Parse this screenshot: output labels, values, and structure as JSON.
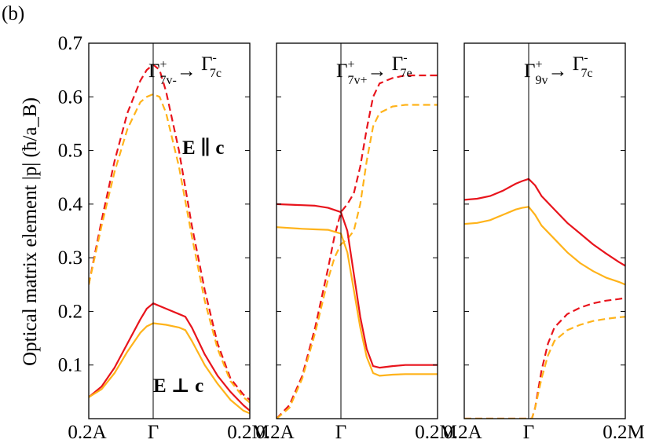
{
  "panel_label": "(b)",
  "ylabel": "Optical matrix element |p| (ħ/a_B)",
  "colors": {
    "red": "#e8141c",
    "orange": "#ffb31a"
  },
  "chart_data": [
    {
      "type": "line",
      "title": "Γ7v-+ → Γ7c-",
      "annotations": [
        "E ∥ c",
        "E ⊥ c"
      ],
      "x_ticks": [
        "0.2A",
        "Γ",
        "0.2M"
      ],
      "xlim": [
        -1,
        1.5
      ],
      "ylim": [
        0,
        0.7
      ],
      "y_ticks": [
        "0.1",
        "0.2",
        "0.3",
        "0.4",
        "0.5",
        "0.6",
        "0.7"
      ],
      "series": [
        {
          "color": "red",
          "style": "dashed",
          "x": [
            -1,
            -0.8,
            -0.6,
            -0.4,
            -0.2,
            -0.1,
            0,
            0.1,
            0.2,
            0.4,
            0.6,
            0.8,
            1,
            1.2,
            1.4,
            1.5
          ],
          "y": [
            0.25,
            0.37,
            0.48,
            0.57,
            0.63,
            0.65,
            0.66,
            0.65,
            0.61,
            0.5,
            0.36,
            0.24,
            0.14,
            0.075,
            0.045,
            0.035
          ]
        },
        {
          "color": "orange",
          "style": "dashed",
          "x": [
            -1,
            -0.8,
            -0.6,
            -0.4,
            -0.2,
            -0.1,
            0,
            0.1,
            0.2,
            0.4,
            0.6,
            0.8,
            1,
            1.2,
            1.4,
            1.5
          ],
          "y": [
            0.25,
            0.36,
            0.46,
            0.54,
            0.59,
            0.6,
            0.605,
            0.6,
            0.57,
            0.47,
            0.34,
            0.22,
            0.13,
            0.07,
            0.04,
            0.03
          ]
        },
        {
          "color": "red",
          "style": "solid",
          "x": [
            -1,
            -0.8,
            -0.6,
            -0.4,
            -0.2,
            -0.1,
            0,
            0.2,
            0.4,
            0.5,
            0.6,
            0.8,
            1,
            1.2,
            1.4,
            1.5
          ],
          "y": [
            0.04,
            0.06,
            0.095,
            0.14,
            0.185,
            0.205,
            0.215,
            0.205,
            0.195,
            0.19,
            0.17,
            0.12,
            0.08,
            0.05,
            0.025,
            0.015
          ]
        },
        {
          "color": "orange",
          "style": "solid",
          "x": [
            -1,
            -0.8,
            -0.6,
            -0.4,
            -0.2,
            -0.1,
            0,
            0.2,
            0.4,
            0.5,
            0.6,
            0.8,
            1,
            1.2,
            1.4,
            1.5
          ],
          "y": [
            0.04,
            0.055,
            0.085,
            0.125,
            0.16,
            0.172,
            0.178,
            0.175,
            0.17,
            0.165,
            0.145,
            0.1,
            0.065,
            0.035,
            0.015,
            0.01
          ]
        }
      ]
    },
    {
      "type": "line",
      "title": "Γ7v++ → Γ7c-",
      "x_ticks": [
        "0.2A",
        "Γ",
        "0.2M"
      ],
      "xlim": [
        -1,
        1.5
      ],
      "ylim": [
        0,
        0.7
      ],
      "series": [
        {
          "color": "red",
          "style": "dashed",
          "x": [
            -1,
            -0.8,
            -0.6,
            -0.4,
            -0.2,
            -0.1,
            0,
            0.1,
            0.2,
            0.3,
            0.4,
            0.5,
            0.6,
            0.8,
            1,
            1.2,
            1.4,
            1.5
          ],
          "y": [
            0.0,
            0.025,
            0.08,
            0.17,
            0.28,
            0.34,
            0.385,
            0.4,
            0.42,
            0.47,
            0.54,
            0.6,
            0.625,
            0.635,
            0.64,
            0.64,
            0.64,
            0.64
          ]
        },
        {
          "color": "orange",
          "style": "dashed",
          "x": [
            -1,
            -0.8,
            -0.6,
            -0.4,
            -0.2,
            -0.1,
            0,
            0.1,
            0.2,
            0.3,
            0.4,
            0.5,
            0.6,
            0.8,
            1,
            1.2,
            1.4,
            1.5
          ],
          "y": [
            0.0,
            0.02,
            0.075,
            0.16,
            0.26,
            0.3,
            0.325,
            0.335,
            0.35,
            0.4,
            0.48,
            0.545,
            0.57,
            0.582,
            0.585,
            0.585,
            0.585,
            0.585
          ]
        },
        {
          "color": "red",
          "style": "solid",
          "x": [
            -1,
            -0.6,
            -0.4,
            -0.2,
            0,
            0.1,
            0.2,
            0.3,
            0.4,
            0.5,
            0.6,
            0.8,
            1,
            1.2,
            1.4,
            1.5
          ],
          "y": [
            0.4,
            0.398,
            0.397,
            0.393,
            0.385,
            0.35,
            0.27,
            0.19,
            0.13,
            0.098,
            0.095,
            0.098,
            0.1,
            0.1,
            0.1,
            0.1
          ]
        },
        {
          "color": "orange",
          "style": "solid",
          "x": [
            -1,
            -0.6,
            -0.4,
            -0.2,
            0,
            0.1,
            0.2,
            0.3,
            0.4,
            0.5,
            0.6,
            0.8,
            1,
            1.2,
            1.4,
            1.5
          ],
          "y": [
            0.357,
            0.354,
            0.353,
            0.352,
            0.345,
            0.31,
            0.24,
            0.17,
            0.115,
            0.085,
            0.08,
            0.082,
            0.083,
            0.083,
            0.083,
            0.083
          ]
        }
      ]
    },
    {
      "type": "line",
      "title": "Γ9v+ → Γ7c-",
      "x_ticks": [
        "0.2A",
        "Γ",
        "0.2M"
      ],
      "xlim": [
        -1,
        1.5
      ],
      "ylim": [
        0,
        0.7
      ],
      "series": [
        {
          "color": "red",
          "style": "solid",
          "x": [
            -1,
            -0.8,
            -0.6,
            -0.4,
            -0.2,
            -0.1,
            0,
            0.1,
            0.2,
            0.4,
            0.6,
            0.8,
            1,
            1.2,
            1.4,
            1.5
          ],
          "y": [
            0.408,
            0.41,
            0.415,
            0.425,
            0.438,
            0.443,
            0.447,
            0.435,
            0.415,
            0.39,
            0.365,
            0.345,
            0.325,
            0.308,
            0.292,
            0.285
          ]
        },
        {
          "color": "orange",
          "style": "solid",
          "x": [
            -1,
            -0.8,
            -0.6,
            -0.4,
            -0.2,
            -0.1,
            0,
            0.1,
            0.2,
            0.4,
            0.6,
            0.8,
            1,
            1.2,
            1.4,
            1.5
          ],
          "y": [
            0.363,
            0.365,
            0.37,
            0.38,
            0.39,
            0.393,
            0.395,
            0.38,
            0.36,
            0.335,
            0.31,
            0.29,
            0.275,
            0.263,
            0.255,
            0.25
          ]
        },
        {
          "color": "red",
          "style": "dashed",
          "x": [
            -1,
            -0.6,
            -0.2,
            0,
            0.05,
            0.1,
            0.2,
            0.3,
            0.4,
            0.6,
            0.8,
            1,
            1.2,
            1.4,
            1.5
          ],
          "y": [
            0.0,
            0.0,
            0.0,
            0.0,
            0.0,
            0.02,
            0.09,
            0.14,
            0.17,
            0.195,
            0.207,
            0.215,
            0.22,
            0.223,
            0.225
          ]
        },
        {
          "color": "orange",
          "style": "dashed",
          "x": [
            -1,
            -0.6,
            -0.2,
            0,
            0.05,
            0.1,
            0.2,
            0.3,
            0.4,
            0.6,
            0.8,
            1,
            1.2,
            1.4,
            1.5
          ],
          "y": [
            0.0,
            0.0,
            0.0,
            0.0,
            0.0,
            0.02,
            0.075,
            0.118,
            0.145,
            0.165,
            0.175,
            0.182,
            0.186,
            0.189,
            0.19
          ]
        }
      ]
    }
  ]
}
